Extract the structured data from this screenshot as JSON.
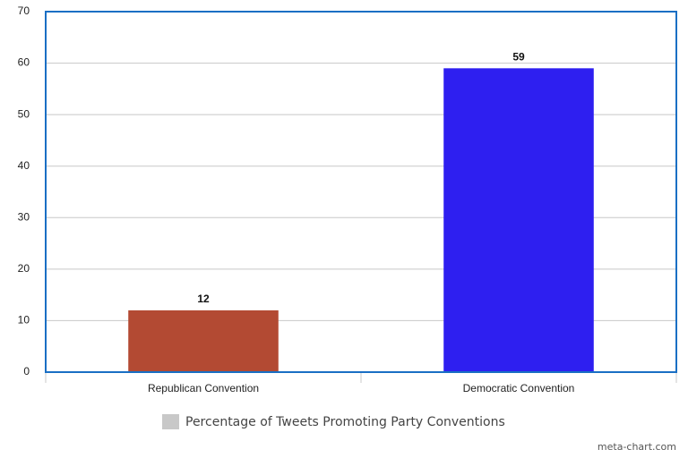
{
  "chart_data": {
    "type": "bar",
    "categories": [
      "Republican Convention",
      "Democratic Convention"
    ],
    "series": [
      {
        "name": "Percentage of Tweets Promoting Party Conventions",
        "color": "#c8c8c8",
        "values": [
          12,
          59
        ],
        "colors": [
          "#b34a33",
          "#2e1ff0"
        ]
      }
    ],
    "ylim": [
      0,
      70
    ],
    "yticks": [
      0,
      10,
      20,
      30,
      40,
      50,
      60,
      70
    ],
    "grid": true,
    "legend": "bottom",
    "credit": "meta-chart.com"
  }
}
